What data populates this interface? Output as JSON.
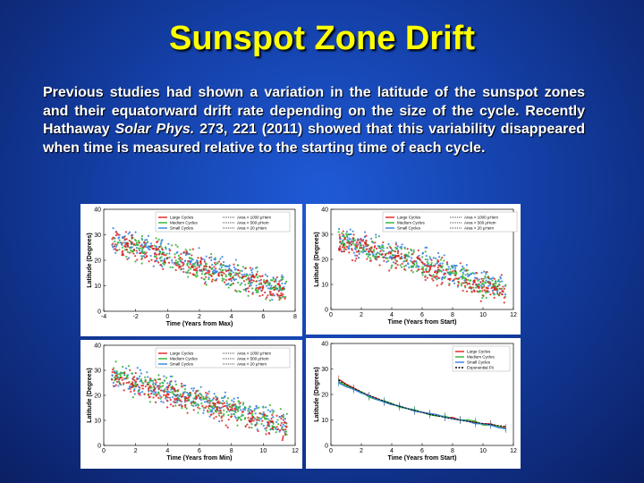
{
  "slide": {
    "title": "Sunspot Zone Drift",
    "para_1": "Previous studies had shown a variation in the latitude of the sunspot zones and their equatorward drift rate depending on the size of the cycle. Recently Hathaway ",
    "para_journal": "Solar Phys.",
    "para_2": " 273, 221 (2011) showed that this variability disappeared when time is measured relative to the starting time of each cycle."
  },
  "colors": {
    "large": "#e02020",
    "medium": "#30b030",
    "small": "#3080e0",
    "fit": "#000000"
  },
  "chart_data": [
    {
      "type": "scatter",
      "xlabel": "Time (Years from Max)",
      "ylabel": "Latitude (Degrees)",
      "xlim": [
        -4,
        8
      ],
      "ylim": [
        0,
        40
      ],
      "xticks": [
        "-4",
        "-2",
        "0",
        "2",
        "4",
        "6",
        "8"
      ],
      "yticks": [
        "0",
        "10",
        "20",
        "30",
        "40"
      ],
      "legend": [
        "Large Cycles",
        "Medium Cycles",
        "Small Cycles"
      ],
      "legend_area": [
        "Area > 1000 μHem",
        "Area > 500 μHem",
        "Area > 20 μHem"
      ],
      "trend": {
        "start": [
          -3.5,
          27
        ],
        "end": [
          7.5,
          7
        ]
      }
    },
    {
      "type": "scatter",
      "xlabel": "Time (Years from Start)",
      "ylabel": "Latitude (Degrees)",
      "xlim": [
        0,
        12
      ],
      "ylim": [
        0,
        40
      ],
      "xticks": [
        "0",
        "2",
        "4",
        "6",
        "8",
        "10",
        "12"
      ],
      "yticks": [
        "0",
        "10",
        "20",
        "30",
        "40"
      ],
      "legend": [
        "Large Cycles",
        "Medium Cycles",
        "Small Cycles"
      ],
      "legend_area": [
        "Area > 1000 μHem",
        "Area > 500 μHem",
        "Area > 20 μHem"
      ],
      "trend": {
        "start": [
          0.5,
          27
        ],
        "end": [
          11.5,
          7
        ]
      }
    },
    {
      "type": "scatter",
      "xlabel": "Time (Years from Min)",
      "ylabel": "Latitude (Degrees)",
      "xlim": [
        0,
        12
      ],
      "ylim": [
        0,
        40
      ],
      "xticks": [
        "0",
        "2",
        "4",
        "6",
        "8",
        "10",
        "12"
      ],
      "yticks": [
        "0",
        "10",
        "20",
        "30",
        "40"
      ],
      "legend": [
        "Large Cycles",
        "Medium Cycles",
        "Small Cycles"
      ],
      "legend_area": [
        "Area > 1000 μHem",
        "Area > 500 μHem",
        "Area > 20 μHem"
      ],
      "trend": {
        "start": [
          0.5,
          27
        ],
        "end": [
          11.5,
          7
        ]
      }
    },
    {
      "type": "line",
      "xlabel": "Time (Years from Start)",
      "ylabel": "Latitude (Degrees)",
      "xlim": [
        0,
        12
      ],
      "ylim": [
        0,
        40
      ],
      "xticks": [
        "0",
        "2",
        "4",
        "6",
        "8",
        "10",
        "12"
      ],
      "yticks": [
        "0",
        "10",
        "20",
        "30",
        "40"
      ],
      "legend": [
        "Large Cycles",
        "Medium Cycles",
        "Small Cycles",
        "Exponential Fit"
      ],
      "x": [
        0.5,
        1,
        1.5,
        2,
        2.5,
        3,
        3.5,
        4,
        4.5,
        5,
        5.5,
        6,
        6.5,
        7,
        7.5,
        8,
        8.5,
        9,
        9.5,
        10,
        10.5,
        11,
        11.5
      ],
      "series": [
        {
          "name": "Large Cycles",
          "values": [
            26,
            24,
            22.5,
            21,
            19.5,
            18.5,
            17,
            16,
            15.5,
            14.5,
            13.5,
            13,
            12.5,
            12,
            11,
            11,
            10,
            9.5,
            9,
            8.5,
            8.5,
            7.5,
            7
          ]
        },
        {
          "name": "Medium Cycles",
          "values": [
            25,
            23.5,
            22,
            21,
            19,
            18,
            17.5,
            16.5,
            15,
            14.5,
            14,
            13,
            12,
            11.5,
            11.5,
            10.5,
            10,
            10,
            9.5,
            8,
            8,
            7.5,
            6.5
          ]
        },
        {
          "name": "Small Cycles",
          "values": [
            24.5,
            23,
            22,
            20.5,
            19.5,
            18,
            17,
            16,
            15.5,
            14.5,
            13.5,
            13,
            12.5,
            12,
            11,
            10.5,
            10,
            9.5,
            8.5,
            8.5,
            8,
            7,
            6.5
          ]
        },
        {
          "name": "Exponential Fit",
          "values": [
            25.6,
            23.9,
            22.4,
            21,
            19.7,
            18.5,
            17.4,
            16.3,
            15.4,
            14.5,
            13.7,
            12.9,
            12.2,
            11.6,
            11,
            10.4,
            9.9,
            9.4,
            9,
            8.6,
            8.2,
            7.8,
            7.5
          ]
        }
      ]
    }
  ]
}
